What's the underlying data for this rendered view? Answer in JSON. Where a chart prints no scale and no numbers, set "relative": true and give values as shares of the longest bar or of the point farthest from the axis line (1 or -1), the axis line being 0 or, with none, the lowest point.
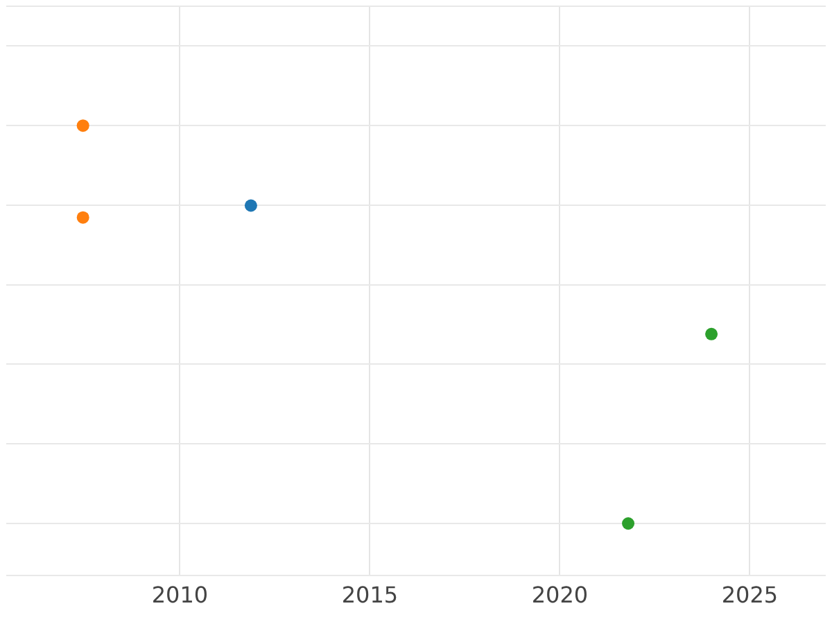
{
  "chart_data": {
    "type": "scatter",
    "relative": true,
    "grid": true,
    "marker": "circle",
    "legend": false,
    "xlim": [
      2005.43,
      2027.0
    ],
    "xticks": [
      2010,
      2015,
      2020,
      2025
    ],
    "series": [
      {
        "color": "#1f77b4",
        "x": [
          2011.87
        ],
        "values": [
          0.799
        ]
      },
      {
        "color": "#ff7f0e",
        "x": [
          2007.45,
          2007.45
        ],
        "values": [
          1,
          0.769
        ]
      },
      {
        "color": "#2ca02c",
        "x": [
          2023.99,
          2021.8
        ],
        "values": [
          0.476,
          0
        ]
      }
    ]
  }
}
